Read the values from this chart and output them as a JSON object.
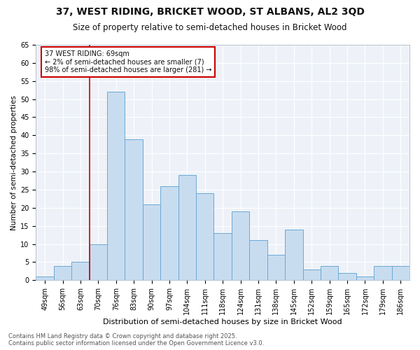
{
  "title1": "37, WEST RIDING, BRICKET WOOD, ST ALBANS, AL2 3QD",
  "title2": "Size of property relative to semi-detached houses in Bricket Wood",
  "xlabel": "Distribution of semi-detached houses by size in Bricket Wood",
  "ylabel": "Number of semi-detached properties",
  "footer1": "Contains HM Land Registry data © Crown copyright and database right 2025.",
  "footer2": "Contains public sector information licensed under the Open Government Licence v3.0.",
  "annotation_title": "37 WEST RIDING: 69sqm",
  "annotation_line1": "← 2% of semi-detached houses are smaller (7)",
  "annotation_line2": "98% of semi-detached houses are larger (281) →",
  "categories": [
    "49sqm",
    "56sqm",
    "63sqm",
    "70sqm",
    "76sqm",
    "83sqm",
    "90sqm",
    "97sqm",
    "104sqm",
    "111sqm",
    "118sqm",
    "124sqm",
    "131sqm",
    "138sqm",
    "145sqm",
    "152sqm",
    "159sqm",
    "165sqm",
    "172sqm",
    "179sqm",
    "186sqm"
  ],
  "values": [
    1,
    4,
    5,
    10,
    52,
    39,
    21,
    26,
    29,
    24,
    13,
    19,
    11,
    7,
    14,
    3,
    4,
    2,
    1,
    4,
    4
  ],
  "bar_color": "#c8dcf0",
  "bar_edge_color": "#6aaad4",
  "vline_color": "#cc0000",
  "vline_x": 2.5,
  "ylim": [
    0,
    65
  ],
  "yticks": [
    0,
    5,
    10,
    15,
    20,
    25,
    30,
    35,
    40,
    45,
    50,
    55,
    60,
    65
  ],
  "bg_color": "#ffffff",
  "plot_bg_color": "#eef2f8",
  "grid_color": "#ffffff",
  "annotation_box_color": "#cc0000",
  "annotation_bg": "#ffffff",
  "title1_fontsize": 10,
  "title2_fontsize": 8.5,
  "xlabel_fontsize": 8,
  "ylabel_fontsize": 7.5,
  "tick_fontsize": 7,
  "ann_fontsize": 7,
  "footer_fontsize": 6
}
